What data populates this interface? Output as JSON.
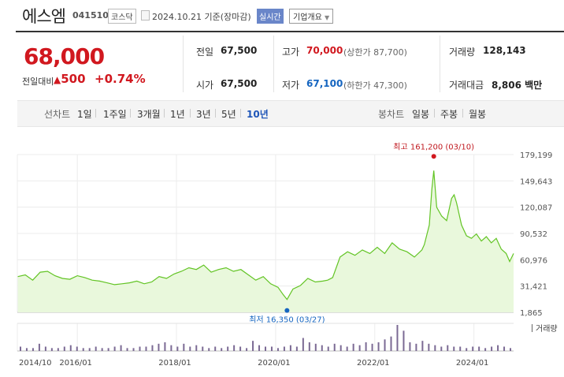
{
  "header": {
    "name": "에스엠",
    "code": "041510",
    "market": "코스닥",
    "date_text": "2024.10.21 기준(장마감)",
    "live_label": "실시간",
    "corp_label": "기업개요"
  },
  "summary": {
    "price": "68,000",
    "diff_label": "전일대비",
    "diff_value": "500",
    "diff_pct": "+0.74%",
    "prev_close_label": "전일",
    "prev_close": "67,500",
    "high_label": "고가",
    "high": "70,000",
    "upper_limit": "(상한가 87,700)",
    "volume_label": "거래량",
    "volume": "128,143",
    "open_label": "시가",
    "open": "67,500",
    "low_label": "저가",
    "low": "67,100",
    "lower_limit": "(하한가 47,300)",
    "amount_label": "거래대금",
    "amount": "8,806 백만"
  },
  "periods": {
    "line_label": "선차트",
    "line_items": [
      "1일",
      "1주일",
      "3개월",
      "1년",
      "3년",
      "5년",
      "10년"
    ],
    "selected": "10년",
    "candle_label": "봉차트",
    "candle_items": [
      "일봉",
      "주봉",
      "월봉"
    ]
  },
  "colors": {
    "up": "#d1181f",
    "down": "#1565c0",
    "line": "#62c424",
    "area": "#e9f8dc",
    "volume": "#7b6a94"
  },
  "chart_data": {
    "type": "area",
    "y_ticks": [
      "179,199",
      "149,643",
      "120,087",
      "90,532",
      "60,976",
      "31,421",
      "1,865"
    ],
    "ylim": [
      1865,
      179199
    ],
    "x_tick_labels": [
      "2014/10",
      "2016/01",
      "2018/01",
      "2020/01",
      "2022/01",
      "2024/01"
    ],
    "x_tick_values": [
      2014.79,
      2016.0,
      2018.0,
      2020.0,
      2022.0,
      2024.0
    ],
    "xlim": [
      2014.79,
      2024.8
    ],
    "series": [
      {
        "x": [
          2014.8,
          2014.95,
          2015.1,
          2015.25,
          2015.4,
          2015.55,
          2015.7,
          2015.85,
          2016.0,
          2016.15,
          2016.3,
          2016.45,
          2016.6,
          2016.75,
          2016.9,
          2017.05,
          2017.2,
          2017.35,
          2017.5,
          2017.65,
          2017.8,
          2017.95,
          2018.1,
          2018.25,
          2018.4,
          2018.55,
          2018.7,
          2018.85,
          2019.0,
          2019.15,
          2019.3,
          2019.45,
          2019.6,
          2019.75,
          2019.9,
          2020.05,
          2020.15,
          2020.23,
          2020.35,
          2020.5,
          2020.65,
          2020.8,
          2020.95,
          2021.05,
          2021.15,
          2021.3,
          2021.45,
          2021.6,
          2021.75,
          2021.9,
          2022.05,
          2022.2,
          2022.35,
          2022.5,
          2022.65,
          2022.8,
          2022.95,
          2023.0,
          2023.1,
          2023.15,
          2023.19,
          2023.25,
          2023.35,
          2023.45,
          2023.55,
          2023.6,
          2023.65,
          2023.75,
          2023.85,
          2023.95,
          2024.05,
          2024.15,
          2024.25,
          2024.35,
          2024.45,
          2024.55,
          2024.65,
          2024.72,
          2024.8
        ],
        "values": [
          42000,
          44000,
          38000,
          47000,
          48000,
          43000,
          40000,
          39000,
          43000,
          41000,
          38000,
          37000,
          35000,
          33000,
          34000,
          35000,
          37000,
          34000,
          36000,
          42000,
          40000,
          45000,
          48000,
          52000,
          50000,
          55000,
          47000,
          50000,
          52000,
          48000,
          50000,
          44000,
          38000,
          42000,
          34000,
          30000,
          22000,
          16350,
          28000,
          32000,
          40000,
          36000,
          37000,
          38000,
          41000,
          64000,
          70000,
          66000,
          72000,
          68000,
          75000,
          68000,
          80000,
          73000,
          70000,
          64000,
          72000,
          78000,
          100000,
          140000,
          161200,
          120000,
          110000,
          105000,
          130000,
          134000,
          125000,
          100000,
          88000,
          85000,
          90000,
          82000,
          87000,
          80000,
          85000,
          73000,
          68000,
          59000,
          68000
        ]
      }
    ],
    "max_annotation": {
      "label": "최고 161,200 (03/10)",
      "x": 2023.19,
      "value": 161200
    },
    "min_annotation": {
      "label": "최저 16,350 (03/27)",
      "x": 2020.23,
      "value": 16350
    },
    "volume_label": "거래량",
    "volume_series": [
      3,
      2,
      2,
      5,
      3,
      2,
      2,
      3,
      4,
      3,
      2,
      2,
      3,
      2,
      2,
      3,
      4,
      2,
      2,
      3,
      3,
      4,
      5,
      6,
      4,
      3,
      5,
      3,
      4,
      3,
      2,
      3,
      2,
      3,
      4,
      3,
      2,
      7,
      4,
      3,
      3,
      2,
      3,
      4,
      3,
      9,
      6,
      5,
      4,
      3,
      5,
      4,
      3,
      5,
      4,
      6,
      5,
      6,
      8,
      10,
      18,
      14,
      6,
      5,
      7,
      5,
      4,
      3,
      4,
      3,
      3,
      2,
      3,
      3,
      2,
      3,
      4,
      3,
      2
    ]
  }
}
